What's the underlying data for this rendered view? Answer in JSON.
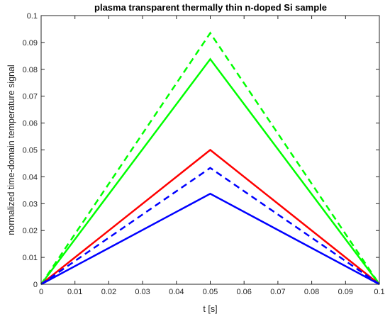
{
  "chart_data": {
    "type": "line",
    "title": "plasma transparent thermally thin n-doped Si sample",
    "xlabel": "t [s]",
    "ylabel": "normalized time-domain temperature signal",
    "xlim": [
      0,
      0.1
    ],
    "ylim": [
      0,
      0.1
    ],
    "x_ticks": [
      "0",
      "0.01",
      "0.02",
      "0.03",
      "0.04",
      "0.05",
      "0.06",
      "0.07",
      "0.08",
      "0.09",
      "0.1"
    ],
    "y_ticks": [
      "0",
      "0.01",
      "0.02",
      "0.03",
      "0.04",
      "0.05",
      "0.06",
      "0.07",
      "0.08",
      "0.09",
      "0.1"
    ],
    "grid": false,
    "box": true,
    "series": [
      {
        "color": "#00ff00",
        "style": "dashed",
        "x": [
          0,
          0.05,
          0.1
        ],
        "y": [
          0,
          0.0935,
          0
        ]
      },
      {
        "color": "#00ff00",
        "style": "solid",
        "x": [
          0,
          0.05,
          0.1
        ],
        "y": [
          0,
          0.0838,
          0
        ]
      },
      {
        "color": "#ff0000",
        "style": "solid",
        "x": [
          0,
          0.05,
          0.1
        ],
        "y": [
          0,
          0.05,
          0
        ]
      },
      {
        "color": "#0000ff",
        "style": "dashed",
        "x": [
          0,
          0.05,
          0.1
        ],
        "y": [
          0,
          0.0433,
          0
        ]
      },
      {
        "color": "#0000ff",
        "style": "solid",
        "x": [
          0,
          0.05,
          0.1
        ],
        "y": [
          0,
          0.0337,
          0
        ]
      }
    ]
  }
}
